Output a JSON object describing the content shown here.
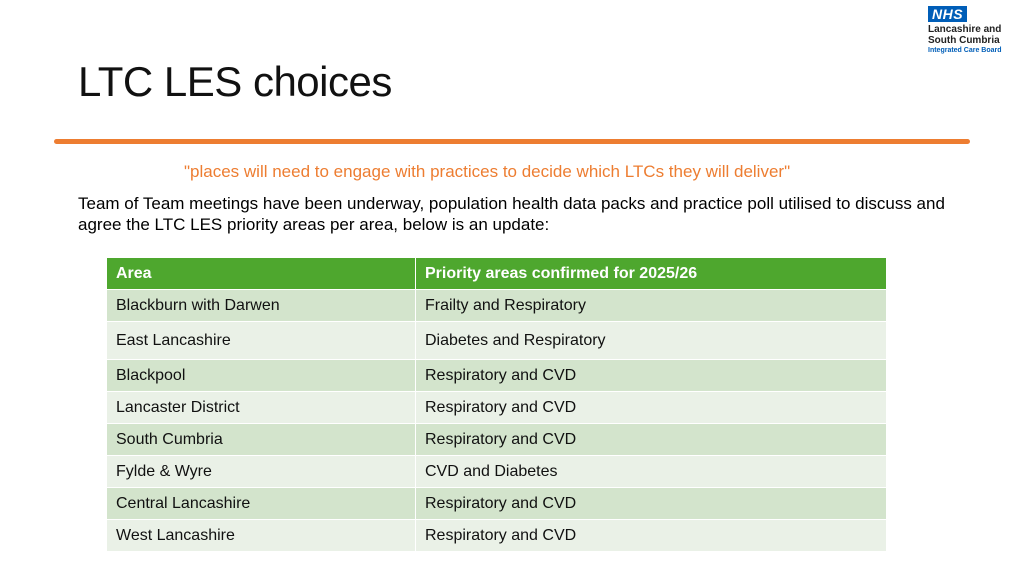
{
  "logo": {
    "nhs": "NHS",
    "line1": "Lancashire and",
    "line2": "South Cumbria",
    "line3": "Integrated Care Board"
  },
  "title": "LTC LES choices",
  "quote": "\"places will need to engage with practices to decide which LTCs they will deliver\"",
  "intro": "Team of Team meetings have been underway, population health data packs and practice poll utilised to discuss and agree the LTC LES priority areas per area, below is an update:",
  "table": {
    "headers": [
      "Area",
      "Priority areas confirmed for 2025/26"
    ],
    "rows": [
      [
        "Blackburn with Darwen",
        "Frailty and Respiratory"
      ],
      [
        "East Lancashire",
        "Diabetes and Respiratory"
      ],
      [
        "Blackpool",
        "Respiratory and CVD"
      ],
      [
        "Lancaster District",
        "Respiratory and CVD"
      ],
      [
        "South Cumbria",
        "Respiratory and CVD"
      ],
      [
        "Fylde & Wyre",
        "CVD and Diabetes"
      ],
      [
        "Central Lancashire",
        "Respiratory and CVD"
      ],
      [
        "West Lancashire",
        "Respiratory and CVD"
      ]
    ]
  },
  "colors": {
    "accent_orange": "#ED7D31",
    "header_green": "#4EA72E",
    "row_green_dark": "#D3E4CC",
    "row_green_light": "#EAF1E7",
    "nhs_blue": "#005EB8"
  }
}
